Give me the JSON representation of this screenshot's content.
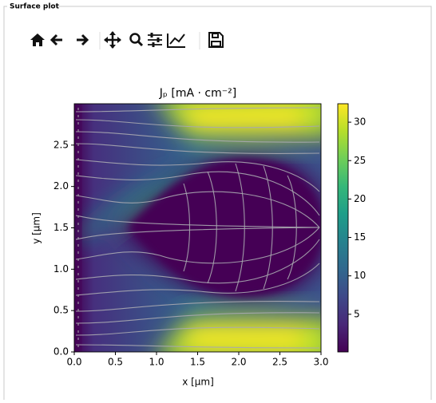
{
  "group_title": "Surface plot",
  "chart_data": {
    "type": "heatmap",
    "title": "Jₚ [mA · cm⁻²]",
    "xlabel": "x [µm]",
    "ylabel": "y [µm]",
    "xlim": [
      0,
      3
    ],
    "ylim": [
      0,
      3
    ],
    "xticks": [
      {
        "value": 0,
        "label": "0.0"
      },
      0.5,
      {
        "value": 1,
        "label": "1.0"
      },
      1.5,
      {
        "value": 2,
        "label": "2.0"
      },
      2.5,
      {
        "value": 3,
        "label": "3.0"
      }
    ],
    "yticks": [
      {
        "value": 0,
        "label": "0.0"
      },
      0.5,
      {
        "value": 1,
        "label": "1.0"
      },
      1.5,
      {
        "value": 2,
        "label": "2.0"
      },
      2.5
    ],
    "clim": [
      0.1,
      32.4
    ],
    "cticks": [
      5,
      10,
      15,
      20,
      25,
      30
    ],
    "colormap": [
      "#440154",
      "#482878",
      "#3e4989",
      "#31688e",
      "#26828e",
      "#1f9e89",
      "#35b779",
      "#6ece58",
      "#b5de2b",
      "#fde725"
    ]
  }
}
